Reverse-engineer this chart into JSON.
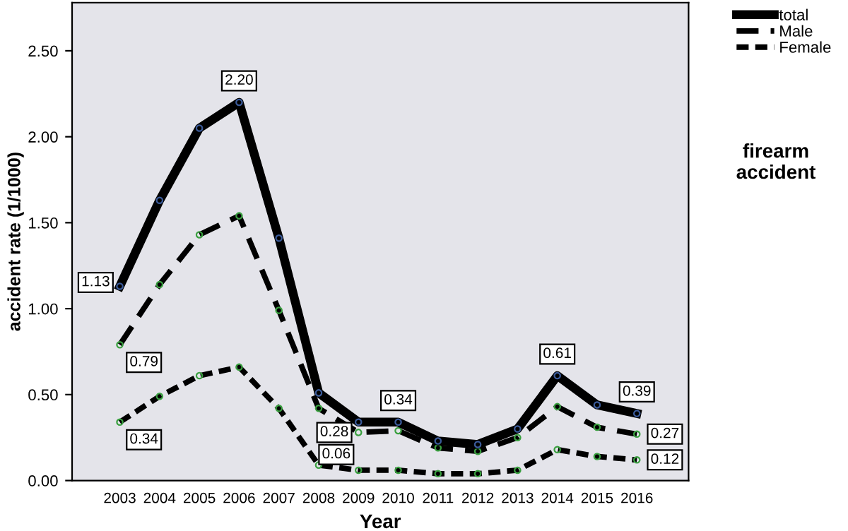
{
  "chart_data": {
    "type": "line",
    "xlabel": "Year",
    "ylabel": "accident rate (1/1000)",
    "categories": [
      "2003",
      "2004",
      "2005",
      "2006",
      "2007",
      "2008",
      "2009",
      "2010",
      "2011",
      "2012",
      "2013",
      "2014",
      "2015",
      "2016"
    ],
    "series": [
      {
        "name": "total",
        "color": "#000000",
        "line_style": "solid",
        "values": [
          1.13,
          1.63,
          2.05,
          2.2,
          1.41,
          0.51,
          0.34,
          0.34,
          0.23,
          0.21,
          0.3,
          0.61,
          0.44,
          0.39
        ],
        "value_labels": [
          "1.13",
          null,
          null,
          "2.20",
          null,
          null,
          null,
          "0.34",
          null,
          null,
          null,
          "0.61",
          null,
          "0.39"
        ]
      },
      {
        "name": "Male",
        "color": "#000000",
        "line_style": "dashed",
        "values": [
          0.79,
          1.14,
          1.43,
          1.54,
          0.99,
          0.42,
          0.28,
          0.29,
          0.19,
          0.17,
          0.25,
          0.43,
          0.31,
          0.27
        ],
        "value_labels": [
          "0.79",
          null,
          null,
          null,
          null,
          null,
          "0.28",
          null,
          null,
          null,
          null,
          null,
          null,
          "0.27"
        ]
      },
      {
        "name": "Female",
        "color": "#000000",
        "line_style": "dotted",
        "values": [
          0.34,
          0.49,
          0.61,
          0.66,
          0.42,
          0.09,
          0.06,
          0.06,
          0.04,
          0.04,
          0.06,
          0.18,
          0.14,
          0.12
        ],
        "value_labels": [
          "0.34",
          null,
          null,
          null,
          null,
          null,
          "0.06",
          null,
          null,
          null,
          null,
          null,
          null,
          "0.12"
        ]
      }
    ],
    "ylim": [
      0,
      2.78
    ],
    "yticks": [
      {
        "value": 0,
        "label": "0.00"
      },
      {
        "value": 0.5,
        "label": "0.50"
      },
      {
        "value": 1,
        "label": "1.00"
      },
      {
        "value": 1.5,
        "label": "1.50"
      },
      {
        "value": 2,
        "label": "2.00"
      },
      {
        "value": 2.5,
        "label": "2.50"
      }
    ],
    "marker": "circle",
    "grid": false,
    "legend": "top right",
    "annotations": [
      "firearm accident"
    ]
  }
}
